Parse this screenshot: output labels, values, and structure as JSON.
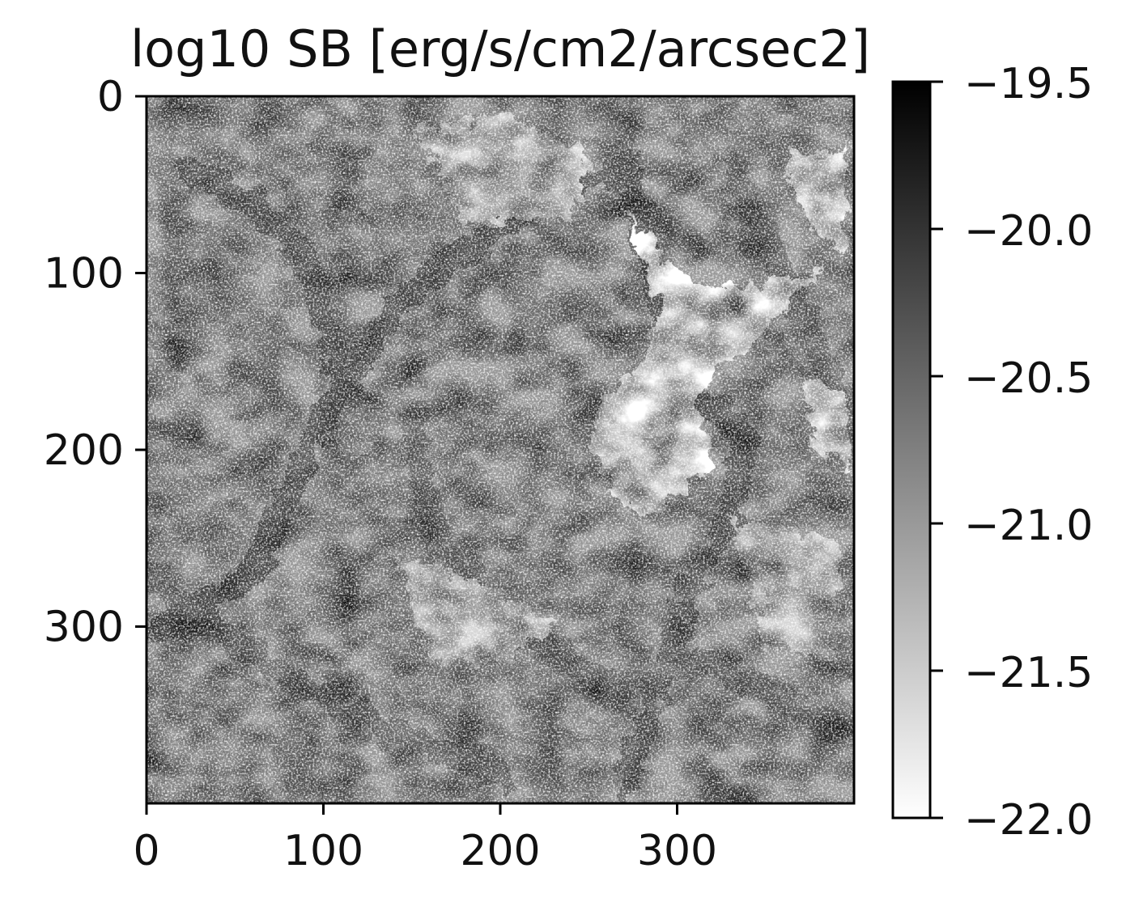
{
  "chart_data": {
    "type": "heatmap",
    "title": "log10 SB [erg/s/cm2/arcsec2]",
    "xlabel": "",
    "ylabel": "",
    "image_size": [
      400,
      400
    ],
    "xlim": [
      0,
      400
    ],
    "ylim": [
      400,
      0
    ],
    "xticks": [
      0,
      100,
      200,
      300
    ],
    "yticks": [
      0,
      100,
      200,
      300
    ],
    "xtick_labels": [
      "0",
      "100",
      "200",
      "300"
    ],
    "ytick_labels": [
      "0",
      "100",
      "200",
      "300"
    ],
    "colormap": "Greys",
    "color_min": "#ffffff",
    "color_max": "#000000",
    "color_range": [
      -22.0,
      -19.5
    ],
    "colorbar_ticks": [
      -19.5,
      -20.0,
      -20.5,
      -21.0,
      -21.5,
      -22.0
    ],
    "colorbar_labels": [
      "−19.5",
      "−20.0",
      "−20.5",
      "−21.0",
      "−21.5",
      "−22.0"
    ],
    "field_mean": -21.0,
    "features": [
      {
        "kind": "filament",
        "value": -20.3,
        "points": [
          [
            10,
            300
          ],
          [
            60,
            270
          ],
          [
            100,
            180
          ],
          [
            150,
            110
          ],
          [
            220,
            60
          ],
          [
            270,
            40
          ]
        ]
      },
      {
        "kind": "filament",
        "value": -20.4,
        "points": [
          [
            270,
            40
          ],
          [
            280,
            80
          ],
          [
            290,
            120
          ]
        ]
      },
      {
        "kind": "filament",
        "value": -20.4,
        "points": [
          [
            310,
            170
          ],
          [
            340,
            190
          ],
          [
            330,
            240
          ],
          [
            310,
            270
          ],
          [
            290,
            330
          ],
          [
            270,
            390
          ]
        ]
      },
      {
        "kind": "filament",
        "value": -20.4,
        "points": [
          [
            20,
            40
          ],
          [
            60,
            60
          ],
          [
            90,
            90
          ],
          [
            110,
            160
          ]
        ]
      },
      {
        "kind": "filament",
        "value": -20.5,
        "points": [
          [
            0,
            270
          ],
          [
            40,
            300
          ],
          [
            80,
            330
          ],
          [
            140,
            360
          ],
          [
            200,
            385
          ]
        ]
      },
      {
        "kind": "filament",
        "value": -20.6,
        "points": [
          [
            150,
            180
          ],
          [
            160,
            240
          ],
          [
            200,
            300
          ],
          [
            260,
            330
          ],
          [
            320,
            320
          ],
          [
            390,
            360
          ]
        ]
      },
      {
        "kind": "filament",
        "value": -20.6,
        "points": [
          [
            330,
            40
          ],
          [
            360,
            100
          ],
          [
            390,
            170
          ]
        ]
      },
      {
        "kind": "void",
        "value": -22.0,
        "points": [
          [
            270,
            60
          ],
          [
            300,
            100
          ],
          [
            330,
            110
          ],
          [
            380,
            100
          ],
          [
            330,
            150
          ],
          [
            310,
            170
          ],
          [
            320,
            210
          ],
          [
            280,
            240
          ],
          [
            250,
            200
          ],
          [
            260,
            170
          ],
          [
            280,
            150
          ],
          [
            290,
            120
          ]
        ]
      },
      {
        "kind": "void",
        "value": -22.0,
        "points": [
          [
            360,
            30
          ],
          [
            395,
            30
          ],
          [
            395,
            90
          ],
          [
            370,
            70
          ]
        ]
      },
      {
        "kind": "void",
        "value": -22.0,
        "points": [
          [
            370,
            160
          ],
          [
            398,
            170
          ],
          [
            398,
            210
          ],
          [
            380,
            200
          ]
        ]
      },
      {
        "kind": "void",
        "value": -21.7,
        "points": [
          [
            150,
            20
          ],
          [
            200,
            10
          ],
          [
            250,
            30
          ],
          [
            240,
            70
          ],
          [
            180,
            70
          ]
        ]
      },
      {
        "kind": "void",
        "value": -21.6,
        "points": [
          [
            140,
            260
          ],
          [
            200,
            280
          ],
          [
            230,
            300
          ],
          [
            200,
            320
          ],
          [
            160,
            320
          ]
        ]
      },
      {
        "kind": "void",
        "value": -21.6,
        "points": [
          [
            330,
            240
          ],
          [
            390,
            250
          ],
          [
            390,
            320
          ],
          [
            350,
            310
          ]
        ]
      }
    ]
  }
}
